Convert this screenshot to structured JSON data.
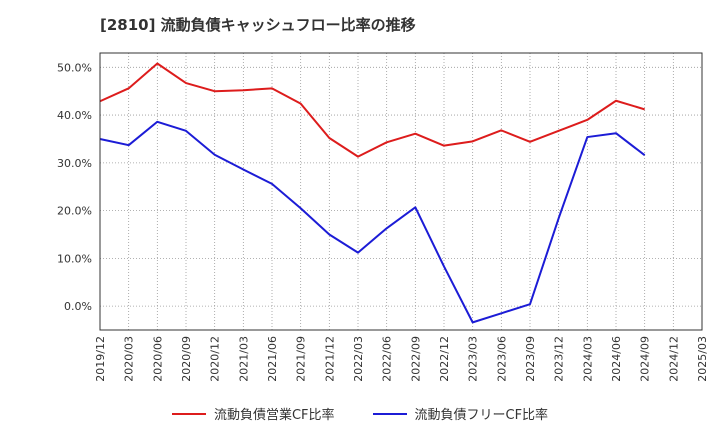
{
  "title": "[2810]  流動負債キャッシュフロー比率の推移",
  "colors": {
    "red": "#dd1c1c",
    "blue": "#1c1cd6"
  },
  "chart_data": {
    "type": "line",
    "title": "[2810]  流動負債キャッシュフロー比率の推移",
    "xlabel": "",
    "ylabel": "",
    "ylim": [
      -5,
      53
    ],
    "yticks": [
      0,
      10,
      20,
      30,
      40,
      50
    ],
    "ytick_labels": [
      "0.0%",
      "10.0%",
      "20.0%",
      "30.0%",
      "40.0%",
      "50.0%"
    ],
    "categories": [
      "2019/12",
      "2020/03",
      "2020/06",
      "2020/09",
      "2020/12",
      "2021/03",
      "2021/06",
      "2021/09",
      "2021/12",
      "2022/03",
      "2022/06",
      "2022/09",
      "2022/12",
      "2023/03",
      "2023/06",
      "2023/09",
      "2023/12",
      "2024/03",
      "2024/06",
      "2024/09",
      "2024/12",
      "2025/03"
    ],
    "grid": true,
    "legend_position": "bottom",
    "series": [
      {
        "name": "流動負債営業CF比率",
        "color": "#dd1c1c",
        "values": [
          42.9,
          45.6,
          50.8,
          46.7,
          45.0,
          45.2,
          45.6,
          42.4,
          35.2,
          31.3,
          34.3,
          36.1,
          33.6,
          34.5,
          36.8,
          34.4,
          36.7,
          39.0,
          43.0,
          41.2,
          null,
          null
        ]
      },
      {
        "name": "流動負債フリーCF比率",
        "color": "#1c1cd6",
        "values": [
          35.0,
          33.7,
          38.6,
          36.7,
          31.7,
          28.6,
          25.6,
          20.5,
          15.0,
          11.2,
          16.3,
          20.7,
          8.3,
          -3.4,
          -1.5,
          0.4,
          18.4,
          35.4,
          36.2,
          31.6,
          null,
          null
        ]
      }
    ]
  }
}
